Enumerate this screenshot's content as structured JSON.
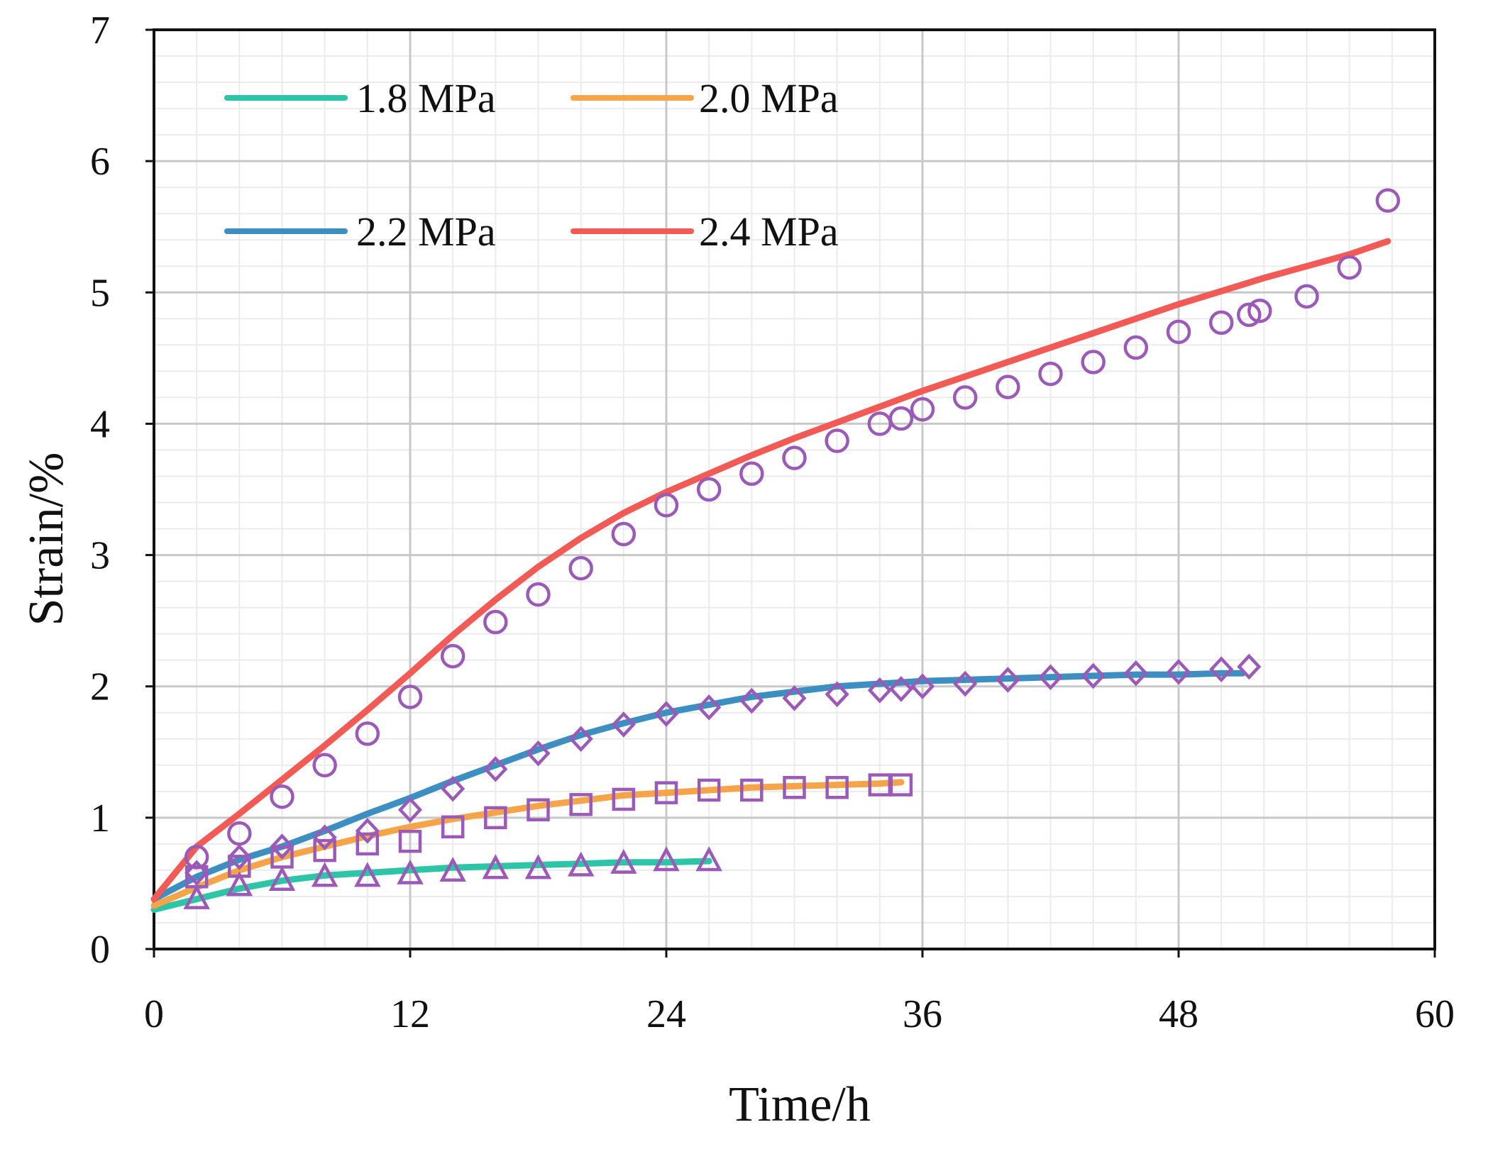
{
  "chart_data": {
    "type": "line",
    "title": "",
    "xlabel": "Time/h",
    "ylabel": "Strain/%",
    "xlim": [
      0,
      60
    ],
    "ylim": [
      0,
      7
    ],
    "xticks": [
      "0",
      "12",
      "24",
      "36",
      "48",
      "60"
    ],
    "yticks": [
      "0",
      "1",
      "2",
      "3",
      "4",
      "5",
      "6",
      "7"
    ],
    "grid": true,
    "legend_position": "top-left",
    "series": [
      {
        "name": "1.8 MPa",
        "color": "#2ec4a8",
        "marker": "triangle",
        "fit": [
          [
            0,
            0.3
          ],
          [
            2,
            0.38
          ],
          [
            4,
            0.46
          ],
          [
            6,
            0.52
          ],
          [
            8,
            0.56
          ],
          [
            10,
            0.58
          ],
          [
            12,
            0.6
          ],
          [
            14,
            0.62
          ],
          [
            16,
            0.63
          ],
          [
            18,
            0.64
          ],
          [
            20,
            0.65
          ],
          [
            22,
            0.66
          ],
          [
            24,
            0.66
          ],
          [
            26,
            0.67
          ]
        ],
        "points": [
          [
            2,
            0.38
          ],
          [
            4,
            0.48
          ],
          [
            6,
            0.52
          ],
          [
            8,
            0.55
          ],
          [
            10,
            0.55
          ],
          [
            12,
            0.57
          ],
          [
            14,
            0.59
          ],
          [
            16,
            0.61
          ],
          [
            18,
            0.61
          ],
          [
            20,
            0.63
          ],
          [
            22,
            0.65
          ],
          [
            24,
            0.67
          ],
          [
            26,
            0.67
          ]
        ]
      },
      {
        "name": "2.0 MPa",
        "color": "#f5a44a",
        "marker": "square",
        "fit": [
          [
            0,
            0.33
          ],
          [
            2,
            0.47
          ],
          [
            4,
            0.6
          ],
          [
            6,
            0.7
          ],
          [
            8,
            0.78
          ],
          [
            10,
            0.86
          ],
          [
            12,
            0.93
          ],
          [
            14,
            0.99
          ],
          [
            16,
            1.04
          ],
          [
            18,
            1.09
          ],
          [
            20,
            1.13
          ],
          [
            22,
            1.17
          ],
          [
            24,
            1.19
          ],
          [
            26,
            1.21
          ],
          [
            28,
            1.23
          ],
          [
            30,
            1.24
          ],
          [
            32,
            1.25
          ],
          [
            34,
            1.26
          ],
          [
            35,
            1.27
          ]
        ],
        "points": [
          [
            2,
            0.55
          ],
          [
            4,
            0.63
          ],
          [
            6,
            0.7
          ],
          [
            8,
            0.75
          ],
          [
            10,
            0.8
          ],
          [
            12,
            0.82
          ],
          [
            14,
            0.93
          ],
          [
            16,
            1.0
          ],
          [
            18,
            1.06
          ],
          [
            20,
            1.1
          ],
          [
            22,
            1.14
          ],
          [
            24,
            1.19
          ],
          [
            26,
            1.21
          ],
          [
            28,
            1.21
          ],
          [
            30,
            1.23
          ],
          [
            32,
            1.23
          ],
          [
            34,
            1.25
          ],
          [
            35,
            1.25
          ]
        ]
      },
      {
        "name": "2.2 MPa",
        "color": "#3d8fc2",
        "marker": "diamond",
        "fit": [
          [
            0,
            0.38
          ],
          [
            2,
            0.55
          ],
          [
            4,
            0.68
          ],
          [
            6,
            0.78
          ],
          [
            8,
            0.9
          ],
          [
            10,
            1.03
          ],
          [
            12,
            1.15
          ],
          [
            14,
            1.28
          ],
          [
            16,
            1.4
          ],
          [
            18,
            1.52
          ],
          [
            20,
            1.63
          ],
          [
            22,
            1.72
          ],
          [
            24,
            1.8
          ],
          [
            26,
            1.86
          ],
          [
            28,
            1.92
          ],
          [
            30,
            1.96
          ],
          [
            32,
            2.0
          ],
          [
            34,
            2.02
          ],
          [
            36,
            2.04
          ],
          [
            38,
            2.05
          ],
          [
            40,
            2.06
          ],
          [
            42,
            2.07
          ],
          [
            44,
            2.08
          ],
          [
            46,
            2.09
          ],
          [
            48,
            2.09
          ],
          [
            50,
            2.1
          ],
          [
            51,
            2.1
          ]
        ],
        "points": [
          [
            2,
            0.58
          ],
          [
            4,
            0.7
          ],
          [
            6,
            0.78
          ],
          [
            8,
            0.85
          ],
          [
            10,
            0.9
          ],
          [
            12,
            1.06
          ],
          [
            14,
            1.22
          ],
          [
            16,
            1.37
          ],
          [
            18,
            1.49
          ],
          [
            20,
            1.6
          ],
          [
            22,
            1.71
          ],
          [
            24,
            1.79
          ],
          [
            26,
            1.84
          ],
          [
            28,
            1.89
          ],
          [
            30,
            1.91
          ],
          [
            32,
            1.94
          ],
          [
            34,
            1.97
          ],
          [
            35,
            1.98
          ],
          [
            36,
            2.0
          ],
          [
            38,
            2.02
          ],
          [
            40,
            2.05
          ],
          [
            42,
            2.07
          ],
          [
            44,
            2.08
          ],
          [
            46,
            2.1
          ],
          [
            48,
            2.11
          ],
          [
            50,
            2.13
          ],
          [
            51.3,
            2.15
          ]
        ]
      },
      {
        "name": "2.4 MPa",
        "color": "#f25b55",
        "marker": "circle",
        "fit": [
          [
            0,
            0.38
          ],
          [
            2,
            0.78
          ],
          [
            4,
            1.03
          ],
          [
            6,
            1.29
          ],
          [
            8,
            1.55
          ],
          [
            10,
            1.82
          ],
          [
            12,
            2.1
          ],
          [
            14,
            2.39
          ],
          [
            16,
            2.66
          ],
          [
            18,
            2.91
          ],
          [
            20,
            3.13
          ],
          [
            22,
            3.32
          ],
          [
            24,
            3.48
          ],
          [
            26,
            3.62
          ],
          [
            28,
            3.76
          ],
          [
            30,
            3.89
          ],
          [
            32,
            4.01
          ],
          [
            34,
            4.13
          ],
          [
            36,
            4.25
          ],
          [
            38,
            4.36
          ],
          [
            40,
            4.47
          ],
          [
            42,
            4.58
          ],
          [
            44,
            4.69
          ],
          [
            46,
            4.8
          ],
          [
            48,
            4.91
          ],
          [
            50,
            5.01
          ],
          [
            52,
            5.11
          ],
          [
            54,
            5.2
          ],
          [
            56,
            5.29
          ],
          [
            57.8,
            5.39
          ]
        ],
        "points": [
          [
            2,
            0.7
          ],
          [
            4,
            0.88
          ],
          [
            6,
            1.16
          ],
          [
            8,
            1.4
          ],
          [
            10,
            1.64
          ],
          [
            12,
            1.92
          ],
          [
            14,
            2.23
          ],
          [
            16,
            2.49
          ],
          [
            18,
            2.7
          ],
          [
            20,
            2.9
          ],
          [
            22,
            3.16
          ],
          [
            24,
            3.38
          ],
          [
            26,
            3.5
          ],
          [
            28,
            3.62
          ],
          [
            30,
            3.74
          ],
          [
            32,
            3.87
          ],
          [
            34,
            4.0
          ],
          [
            35,
            4.04
          ],
          [
            36,
            4.11
          ],
          [
            38,
            4.2
          ],
          [
            40,
            4.28
          ],
          [
            42,
            4.38
          ],
          [
            44,
            4.47
          ],
          [
            46,
            4.58
          ],
          [
            48,
            4.7
          ],
          [
            50,
            4.77
          ],
          [
            51.3,
            4.83
          ],
          [
            51.8,
            4.86
          ],
          [
            54,
            4.97
          ],
          [
            56,
            5.19
          ],
          [
            57.8,
            5.7
          ]
        ]
      }
    ]
  },
  "colors": {
    "marker": "#9b5ab8",
    "grid_major": "#c8c8c8",
    "grid_minor": "#ebebeb",
    "axis": "#111111"
  }
}
